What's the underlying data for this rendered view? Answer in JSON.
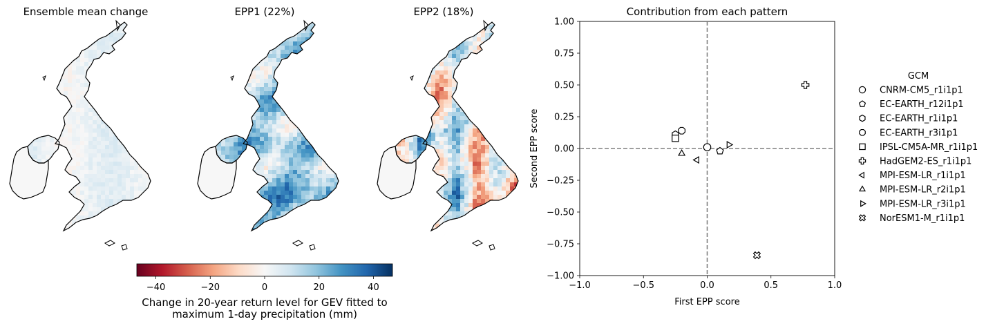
{
  "maps": {
    "panels": [
      {
        "title": "Ensemble mean change",
        "pattern": "mean"
      },
      {
        "title": "EPP1 (22%)",
        "pattern": "epp1"
      },
      {
        "title": "EPP2 (18%)",
        "pattern": "epp2"
      }
    ],
    "colorbar": {
      "cmap": "RdBu",
      "vmin": -47,
      "vmax": 47,
      "ticks": [
        -40,
        -20,
        0,
        20,
        40
      ],
      "tick_labels": [
        "−40",
        "−20",
        "0",
        "20",
        "40"
      ],
      "label_line1": "Change in 20-year return level for GEV fitted to",
      "label_line2": "maximum 1-day precipitation (mm)"
    }
  },
  "chart_data": {
    "type": "scatter",
    "title": "Contribution from each pattern",
    "xlabel": "First EPP score",
    "ylabel": "Second EPP score",
    "xlim": [
      -1.0,
      1.0
    ],
    "ylim": [
      -1.0,
      1.0
    ],
    "xticks": [
      -1.0,
      -0.5,
      0.0,
      0.5,
      1.0
    ],
    "xtick_labels": [
      "−1.0",
      "−0.5",
      "0.0",
      "0.5",
      "1.0"
    ],
    "yticks": [
      -1.0,
      -0.75,
      -0.5,
      -0.25,
      0.0,
      0.25,
      0.5,
      0.75,
      1.0
    ],
    "ytick_labels": [
      "−1.00",
      "−0.75",
      "−0.50",
      "−0.25",
      "0.00",
      "0.25",
      "0.50",
      "0.75",
      "1.00"
    ],
    "reference_lines": {
      "x": 0,
      "y": 0,
      "style": "dashed"
    },
    "legend_title": "GCM",
    "legend_placement": "outside right",
    "series": [
      {
        "name": "CNRM-CM5_r1i1p1",
        "marker": "circle",
        "x": 0.0,
        "y": 0.01
      },
      {
        "name": "EC-EARTH_r12i1p1",
        "marker": "pentagon",
        "x": 0.1,
        "y": -0.02
      },
      {
        "name": "EC-EARTH_r1i1p1",
        "marker": "hexagon",
        "x": -0.25,
        "y": 0.11
      },
      {
        "name": "EC-EARTH_r3i1p1",
        "marker": "octagon",
        "x": -0.2,
        "y": 0.14
      },
      {
        "name": "IPSL-CM5A-MR_r1i1p1",
        "marker": "square",
        "x": -0.25,
        "y": 0.08
      },
      {
        "name": "HadGEM2-ES_r1i1p1",
        "marker": "plus",
        "x": 0.77,
        "y": 0.5
      },
      {
        "name": "MPI-ESM-LR_r1i1p1",
        "marker": "triangle-left",
        "x": -0.08,
        "y": -0.09
      },
      {
        "name": "MPI-ESM-LR_r2i1p1",
        "marker": "triangle-up",
        "x": -0.2,
        "y": -0.04
      },
      {
        "name": "MPI-ESM-LR_r3i1p1",
        "marker": "triangle-right",
        "x": 0.17,
        "y": 0.03
      },
      {
        "name": "NorESM1-M_r1i1p1",
        "marker": "x",
        "x": 0.39,
        "y": -0.84
      }
    ]
  }
}
